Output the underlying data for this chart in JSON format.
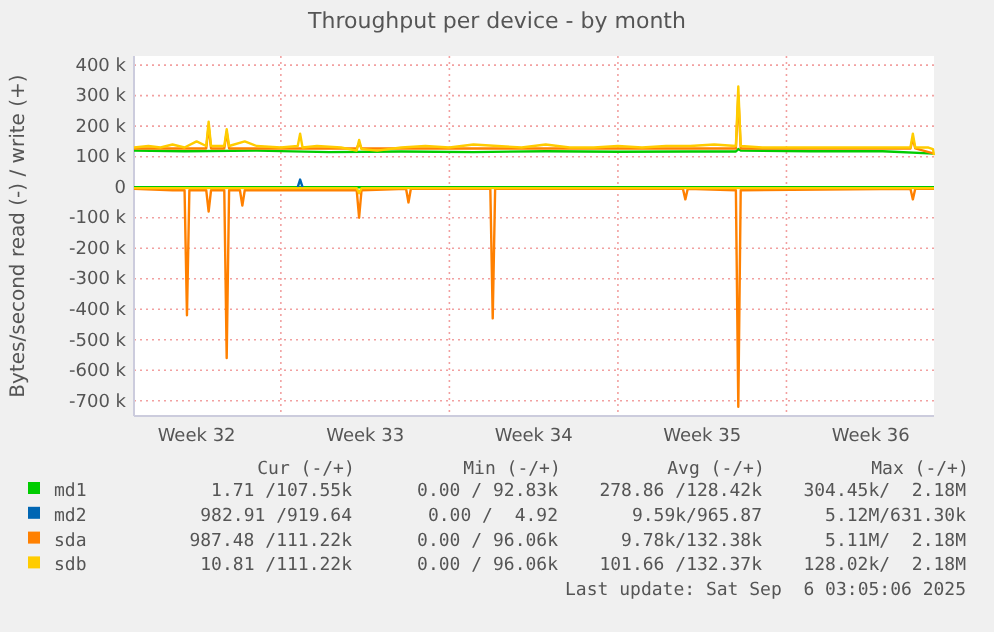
{
  "chart_data": {
    "type": "line",
    "title": "Throughput per device - by month",
    "ylabel": "Bytes/second read (-) / write (+)",
    "xlim": [
      "2025-08-03T21:36",
      "2025-09-06T03:05"
    ],
    "xticks": [
      {
        "value": "2025-08-06T12:00",
        "label": "Week 32"
      },
      {
        "value": "2025-08-10T00:00",
        "label": null
      },
      {
        "value": "2025-08-13T12:00",
        "label": "Week 33"
      },
      {
        "value": "2025-08-17T00:00",
        "label": null
      },
      {
        "value": "2025-08-20T12:00",
        "label": "Week 34"
      },
      {
        "value": "2025-08-24T00:00",
        "label": null
      },
      {
        "value": "2025-08-27T12:00",
        "label": "Week 35"
      },
      {
        "value": "2025-08-31T00:00",
        "label": null
      },
      {
        "value": "2025-09-03T12:00",
        "label": "Week 36"
      }
    ],
    "ylim": [
      -750000,
      430000
    ],
    "yticks": [
      {
        "value": -700000,
        "label": "-700 k"
      },
      {
        "value": -600000,
        "label": "-600 k"
      },
      {
        "value": -500000,
        "label": "-500 k"
      },
      {
        "value": -400000,
        "label": "-400 k"
      },
      {
        "value": -300000,
        "label": "-300 k"
      },
      {
        "value": -200000,
        "label": "-200 k"
      },
      {
        "value": -100000,
        "label": "-100 k"
      },
      0,
      {
        "value": 100000,
        "label": "100 k"
      },
      {
        "value": 200000,
        "label": "200 k"
      },
      {
        "value": 300000,
        "label": "300 k"
      },
      {
        "value": 400000,
        "label": "400 k"
      }
    ],
    "grid": true,
    "legend": "bottom",
    "series": [
      {
        "color": "#00cc00",
        "x": [
          "2025-08-03T21:36",
          "2025-09-06T03:05"
        ],
        "values": [
          0,
          0
        ]
      },
      {
        "name": "md1",
        "color": "#00cc00",
        "x": [
          "2025-08-03T21:36",
          "2025-08-06T00:00",
          "2025-08-09T00:00",
          "2025-08-12T00:00",
          "2025-08-15T00:00",
          "2025-08-18T00:00",
          "2025-08-21T00:00",
          "2025-08-24T00:00",
          "2025-08-27T00:00",
          "2025-08-28T21:36",
          "2025-08-29T00:00",
          "2025-08-29T02:24",
          "2025-09-01T00:00",
          "2025-09-04T00:00",
          "2025-09-06T03:05"
        ],
        "values": [
          120000,
          118000,
          120000,
          115000,
          117000,
          115000,
          118000,
          116000,
          117000,
          117000,
          125000,
          120000,
          118000,
          118000,
          110000
        ]
      },
      {
        "name": "md2",
        "color": "#0066b3",
        "x": [
          "2025-08-10T16:48",
          "2025-08-10T19:12",
          "2025-08-10T21:36"
        ],
        "values": [
          0,
          25000,
          0
        ]
      },
      {
        "name": "sda",
        "color": "#ff8000",
        "x": [
          "2025-08-03T21:36",
          "2025-08-06T21:36",
          "2025-08-07T00:00",
          "2025-08-07T02:24",
          "2025-08-07T15:36",
          "2025-08-07T18:00",
          "2025-08-07T20:24",
          "2025-08-13T03:36",
          "2025-08-13T06:00",
          "2025-08-13T08:24",
          "2025-08-28T21:36",
          "2025-08-29T00:00",
          "2025-08-29T02:24",
          "2025-09-05T03:36",
          "2025-09-05T06:00",
          "2025-09-05T08:24",
          "2025-09-06T03:05"
        ],
        "values": [
          127000,
          127000,
          200000,
          127000,
          127000,
          180000,
          127000,
          127000,
          145000,
          127000,
          127000,
          300000,
          127000,
          127000,
          160000,
          127000,
          110000
        ]
      },
      {
        "name": "sdb",
        "color": "#ffcc00",
        "x": [
          "2025-08-03T21:36",
          "2025-08-04T12:00",
          "2025-08-05T00:00",
          "2025-08-05T12:00",
          "2025-08-06T00:00",
          "2025-08-06T12:00",
          "2025-08-06T21:36",
          "2025-08-07T00:00",
          "2025-08-07T02:24",
          "2025-08-07T15:36",
          "2025-08-07T18:00",
          "2025-08-07T20:24",
          "2025-08-08T12:00",
          "2025-08-09T00:00",
          "2025-08-10T00:00",
          "2025-08-10T16:48",
          "2025-08-10T19:12",
          "2025-08-10T21:36",
          "2025-08-11T12:00",
          "2025-08-12T12:00",
          "2025-08-13T03:36",
          "2025-08-13T06:00",
          "2025-08-13T08:24",
          "2025-08-14T00:00",
          "2025-08-15T00:00",
          "2025-08-16T00:00",
          "2025-08-17T00:00",
          "2025-08-18T00:00",
          "2025-08-19T00:00",
          "2025-08-20T00:00",
          "2025-08-21T00:00",
          "2025-08-22T00:00",
          "2025-08-23T00:00",
          "2025-08-24T00:00",
          "2025-08-25T00:00",
          "2025-08-26T00:00",
          "2025-08-27T00:00",
          "2025-08-28T00:00",
          "2025-08-28T21:36",
          "2025-08-29T00:00",
          "2025-08-29T02:24",
          "2025-08-30T00:00",
          "2025-08-31T00:00",
          "2025-09-01T00:00",
          "2025-09-02T00:00",
          "2025-09-03T00:00",
          "2025-09-04T00:00",
          "2025-09-05T03:36",
          "2025-09-05T06:00",
          "2025-09-05T08:24",
          "2025-09-05T14:24",
          "2025-09-05T21:36",
          "2025-09-06T02:00",
          "2025-09-06T03:05"
        ],
        "values": [
          130000,
          135000,
          130000,
          140000,
          130000,
          150000,
          135000,
          215000,
          135000,
          135000,
          190000,
          135000,
          150000,
          135000,
          130000,
          135000,
          175000,
          130000,
          135000,
          130000,
          120000,
          155000,
          125000,
          120000,
          130000,
          135000,
          130000,
          140000,
          135000,
          130000,
          140000,
          130000,
          130000,
          135000,
          130000,
          135000,
          135000,
          140000,
          135000,
          330000,
          135000,
          130000,
          130000,
          130000,
          130000,
          130000,
          130000,
          130000,
          175000,
          130000,
          130000,
          130000,
          125000,
          105000
        ]
      },
      {
        "color": "#ff8000",
        "x": [
          "2025-08-03T21:36",
          "2025-08-05T12:00",
          "2025-08-06T00:00",
          "2025-08-06T02:24",
          "2025-08-06T04:48",
          "2025-08-06T21:36",
          "2025-08-07T00:00",
          "2025-08-07T02:24",
          "2025-08-07T15:36",
          "2025-08-07T18:00",
          "2025-08-07T20:24",
          "2025-08-08T07:12",
          "2025-08-08T09:36",
          "2025-08-08T12:00",
          "2025-08-13T03:36",
          "2025-08-13T06:00",
          "2025-08-13T08:24",
          "2025-08-15T04:48",
          "2025-08-15T07:12",
          "2025-08-15T09:36",
          "2025-08-18T16:48",
          "2025-08-18T19:12",
          "2025-08-18T21:36",
          "2025-08-26T16:48",
          "2025-08-26T19:12",
          "2025-08-26T21:36",
          "2025-08-28T21:36",
          "2025-08-29T00:00",
          "2025-08-29T02:24",
          "2025-09-05T03:36",
          "2025-09-05T06:00",
          "2025-09-05T08:24",
          "2025-09-06T03:05"
        ],
        "values": [
          -5000,
          -10000,
          -10000,
          -420000,
          -10000,
          -10000,
          -80000,
          -10000,
          -10000,
          -560000,
          -10000,
          -10000,
          -60000,
          -10000,
          -10000,
          -100000,
          -10000,
          -5000,
          -50000,
          -5000,
          -5000,
          -430000,
          -5000,
          -5000,
          -40000,
          -5000,
          -10000,
          -720000,
          -10000,
          -5000,
          -40000,
          -5000,
          -5000
        ]
      },
      {
        "color": "#ffcc00",
        "x": [
          "2025-08-03T21:36",
          "2025-08-13T03:36",
          "2025-08-13T06:00",
          "2025-08-13T08:24",
          "2025-09-06T03:05"
        ],
        "values": [
          -3000,
          -3000,
          -20000,
          -3000,
          -3000
        ]
      }
    ],
    "annotations": [
      "Cur (-/+)",
      "Min (-/+)",
      "Avg (-/+)",
      "Max (-/+)",
      "1.71 /107.55k",
      "0.00 / 92.83k",
      "278.86 /128.42k",
      "304.45k/  2.18M",
      "982.91 /919.64",
      "0.00 /  4.92",
      "9.59k/965.87",
      "5.12M/631.30k",
      "987.48 /111.22k",
      "0.00 / 96.06k",
      "9.78k/132.38k",
      "5.11M/  2.18M",
      "10.81 /111.22k",
      "0.00 / 96.06k",
      "101.66 /132.37k",
      "128.02k/  2.18M",
      "Last update: Sat Sep  6 03:05:06 2025"
    ]
  }
}
